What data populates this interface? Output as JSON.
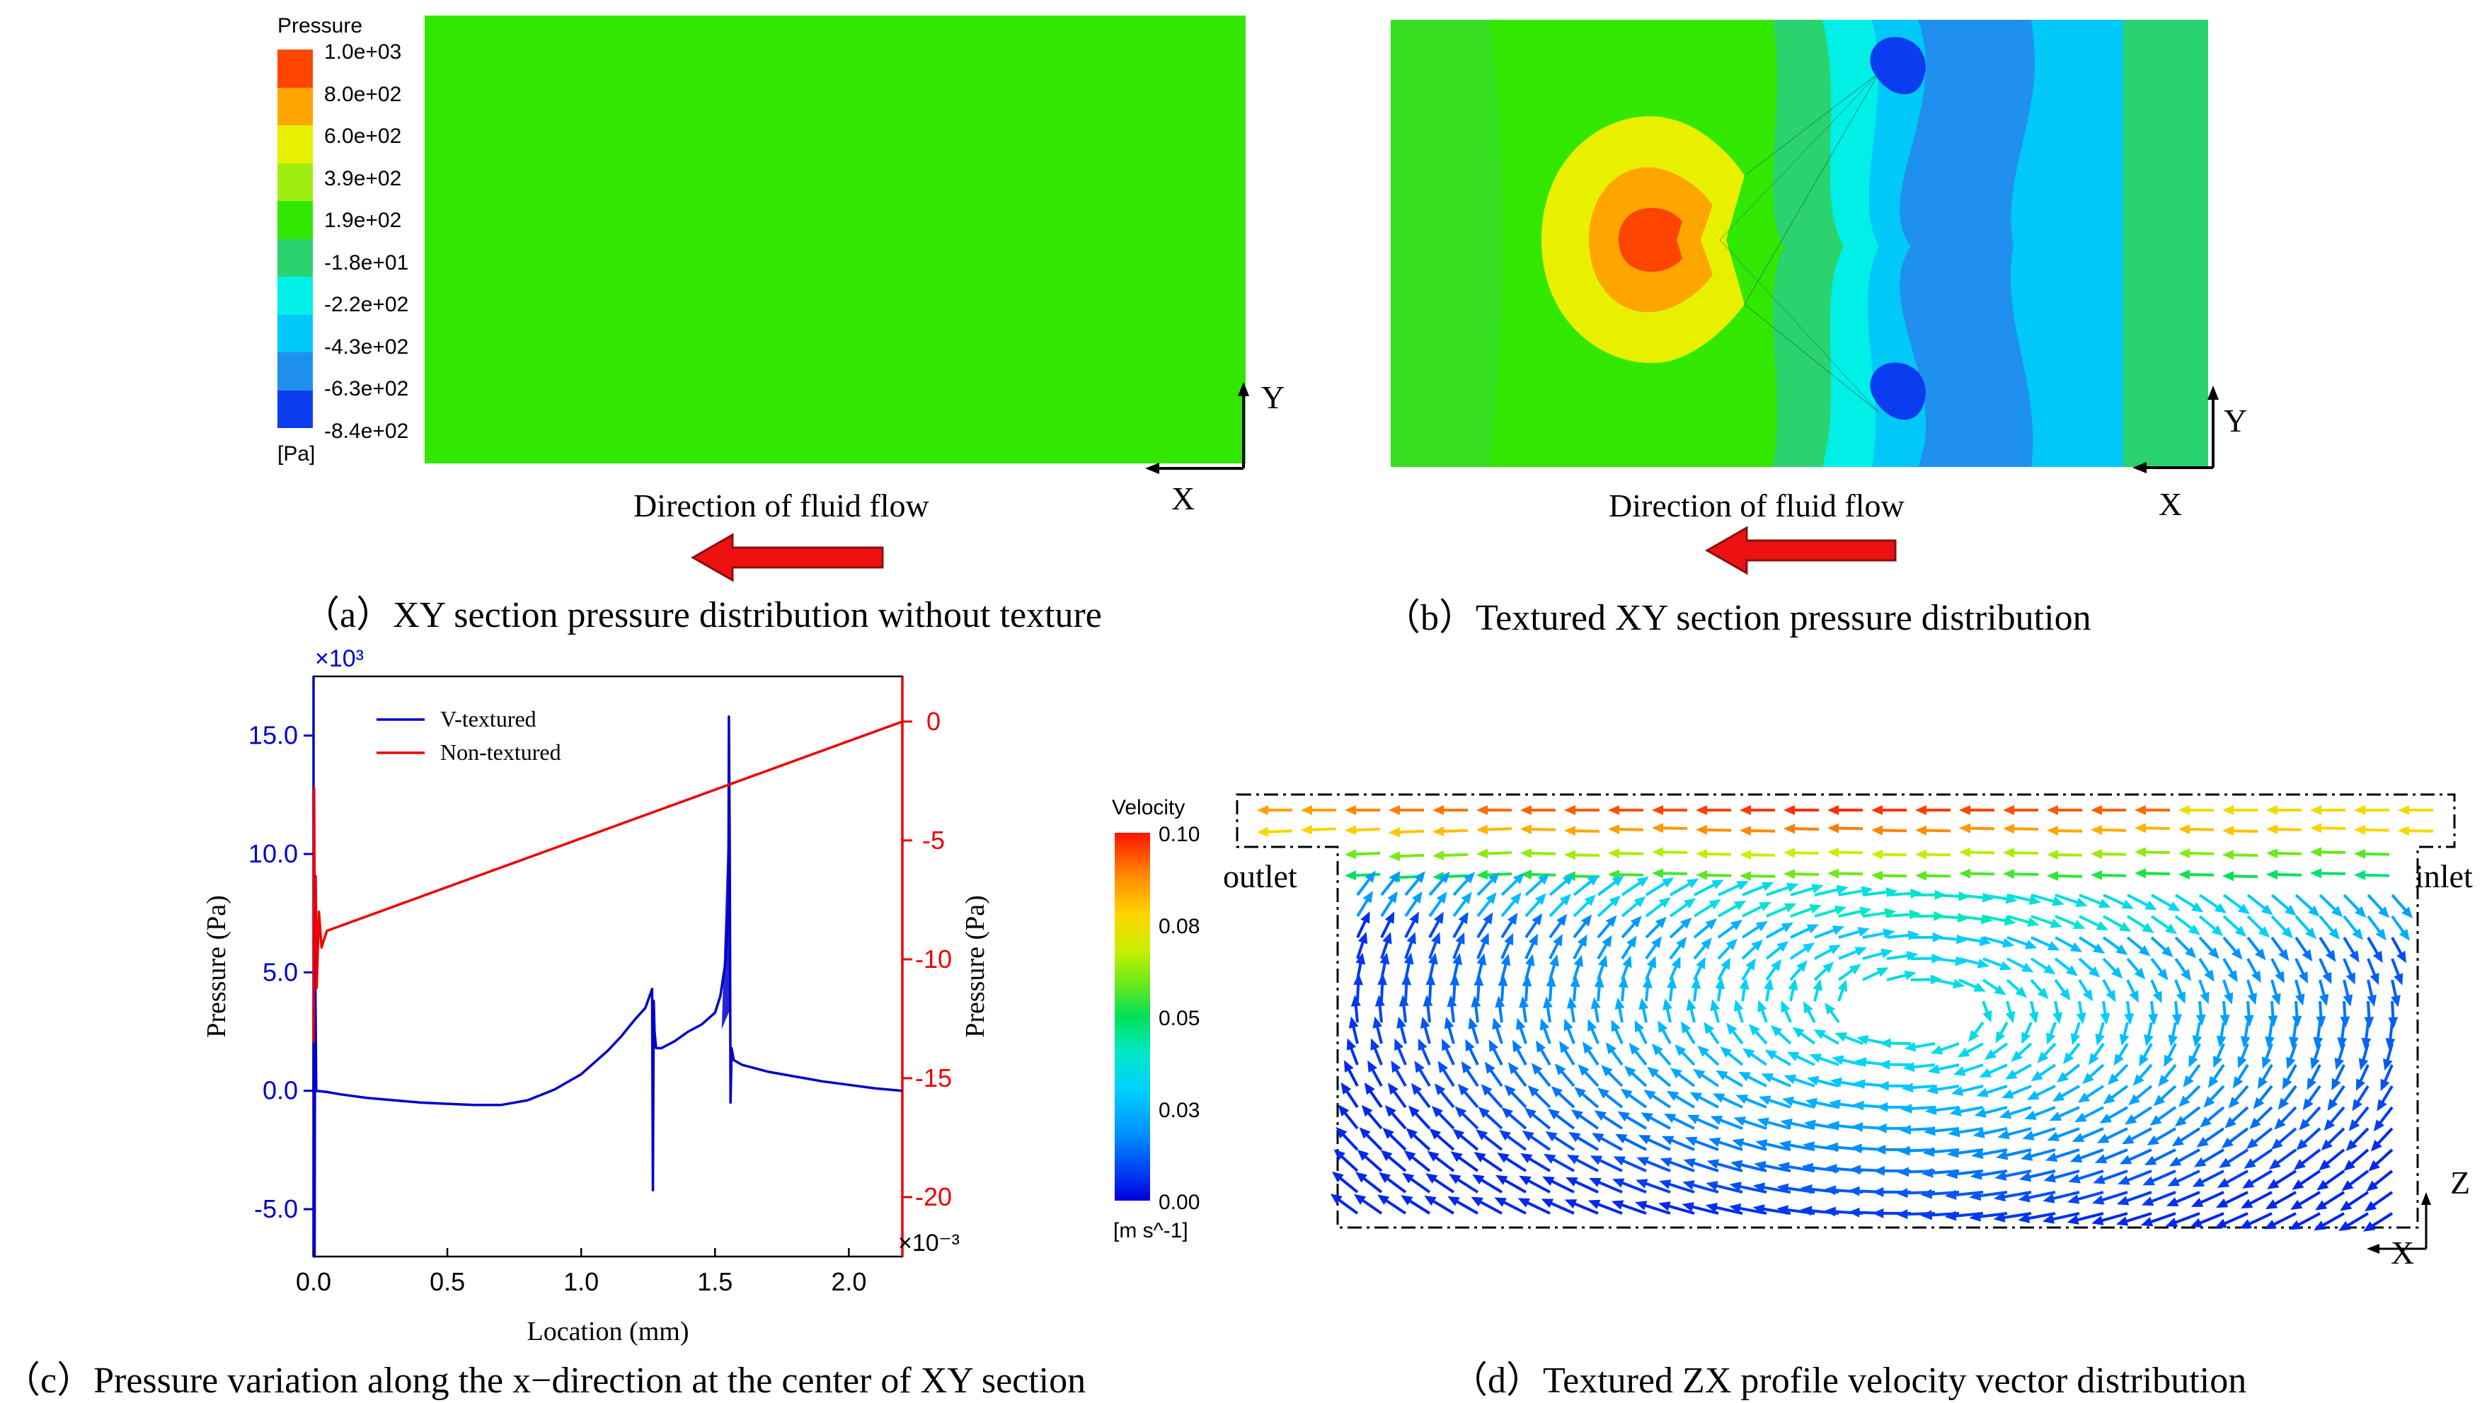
{
  "panel_a": {
    "caption": "（a）XY section pressure distribution without texture",
    "flow_label": "Direction of fluid flow",
    "axis_x": "X",
    "axis_y": "Y",
    "fill_color": "#33E800"
  },
  "panel_b": {
    "caption": "（b）Textured XY section pressure distribution",
    "flow_label": "Direction of fluid flow",
    "axis_x": "X",
    "axis_y": "Y"
  },
  "pressure_legend": {
    "title": "Pressure",
    "unit": "[Pa]",
    "levels": [
      "1.0e+03",
      "8.0e+02",
      "6.0e+02",
      "3.9e+02",
      "1.9e+02",
      "-1.8e+01",
      "-2.2e+02",
      "-4.3e+02",
      "-6.3e+02",
      "-8.4e+02"
    ],
    "colors": [
      "#FF4500",
      "#FFA500",
      "#E8F000",
      "#A0EE10",
      "#33E800",
      "#2AD36E",
      "#00F0E8",
      "#00C8F8",
      "#1F90EE",
      "#0A3CF0"
    ]
  },
  "panel_c": {
    "caption": "（c）Pressure variation along the x−direction at the center of XY section",
    "chart_data": {
      "type": "line",
      "xlabel": "Location (mm)",
      "ylabel_left": "Pressure (Pa)",
      "ylabel_right": "Pressure (Pa)",
      "xlim": [
        0,
        2.2
      ],
      "ylim_left": [
        -7.0,
        17.5
      ],
      "ylim_right": [
        -22.5,
        1.9
      ],
      "left_multiplier": "×10³",
      "right_multiplier": "×10⁻³",
      "x_ticks": [
        "0.0",
        "0.5",
        "1.0",
        "1.5",
        "2.0"
      ],
      "x_tick_values": [
        0,
        0.5,
        1.0,
        1.5,
        2.0
      ],
      "left_ticks": [
        "-5.0",
        "0.0",
        "5.0",
        "10.0",
        "15.0"
      ],
      "left_tick_values": [
        -5,
        0,
        5,
        10,
        15
      ],
      "right_ticks": [
        "0",
        "-5",
        "-10",
        "-15",
        "-20"
      ],
      "right_tick_values": [
        0,
        -5,
        -10,
        -15,
        -20
      ],
      "series": [
        {
          "name": "V-textured",
          "axis": "left",
          "color": "#0000CC",
          "x": [
            0,
            0.002,
            0.004,
            0.006,
            0.01,
            0.05,
            0.1,
            0.2,
            0.3,
            0.4,
            0.5,
            0.6,
            0.7,
            0.8,
            0.9,
            1.0,
            1.1,
            1.15,
            1.2,
            1.24,
            1.265,
            1.268,
            1.271,
            1.274,
            1.28,
            1.3,
            1.35,
            1.4,
            1.45,
            1.5,
            1.52,
            1.54,
            1.55,
            1.552,
            1.555,
            1.558,
            1.562,
            1.57,
            1.6,
            1.7,
            1.8,
            1.9,
            2.0,
            2.1,
            2.2
          ],
          "y": [
            0,
            12.5,
            -7.0,
            5.5,
            0.0,
            -0.05,
            -0.15,
            -0.3,
            -0.4,
            -0.5,
            -0.55,
            -0.6,
            -0.6,
            -0.4,
            0.05,
            0.7,
            1.7,
            2.3,
            3.0,
            3.5,
            4.3,
            -4.2,
            3.8,
            2.5,
            1.8,
            1.8,
            2.1,
            2.5,
            2.8,
            3.3,
            4.0,
            5.5,
            8.0,
            15.8,
            10.0,
            -0.5,
            1.8,
            1.3,
            1.1,
            0.8,
            0.6,
            0.4,
            0.25,
            0.1,
            0.0
          ]
        },
        {
          "name": "Non-textured",
          "axis": "right",
          "color": "#EE0000",
          "x": [
            0,
            0.002,
            0.005,
            0.008,
            0.012,
            0.02,
            0.03,
            0.05,
            2.2
          ],
          "y": [
            -13.5,
            -2.8,
            -9.5,
            -6.5,
            -11.2,
            -8.0,
            -9.5,
            -8.8,
            0.0
          ]
        }
      ]
    }
  },
  "panel_d": {
    "caption": "（d）Textured ZX profile velocity vector distribution",
    "outlet_label": "outlet",
    "inlet_label": "inlet",
    "axis_x": "X",
    "axis_z": "Z",
    "legend": {
      "title": "Velocity",
      "unit": "[m s^-1]",
      "ticks": [
        "0.10",
        "0.08",
        "0.05",
        "0.03",
        "0.00"
      ],
      "max": 0.1
    }
  }
}
